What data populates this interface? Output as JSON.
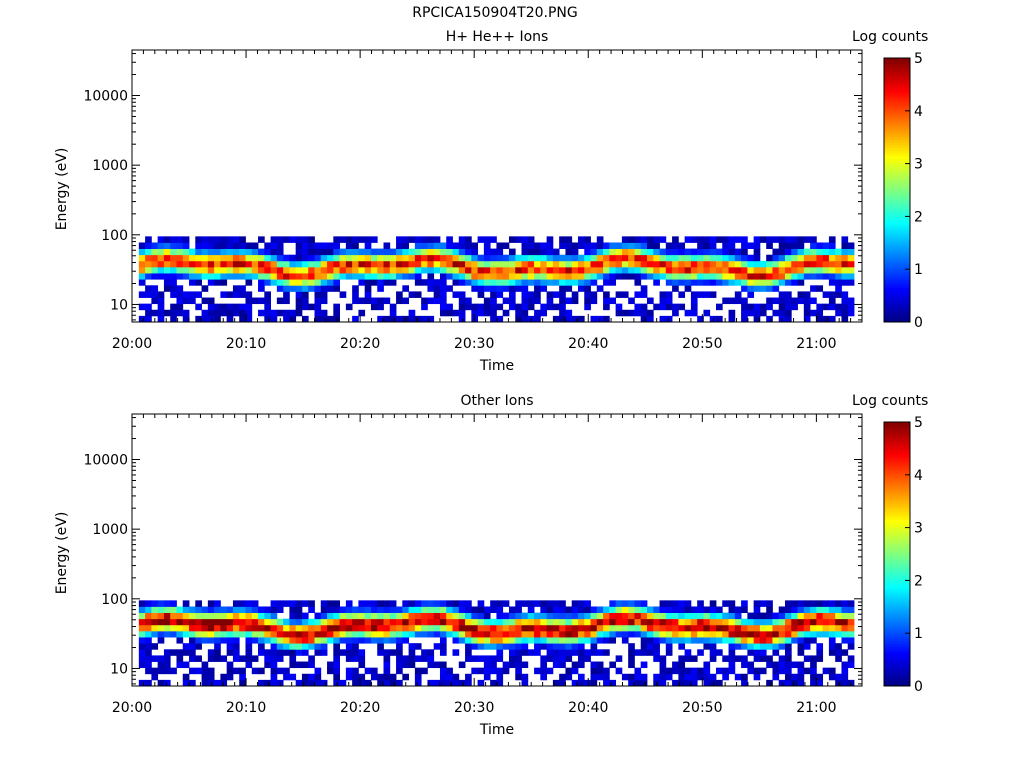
{
  "page_title": "RPCICA150904T20.PNG",
  "chart_data": [
    {
      "type": "heatmap",
      "title": "H+ He++ Ions",
      "xlabel": "Time",
      "ylabel": "Energy (eV)",
      "y_scale": "log",
      "ylim": [
        5.6,
        45000
      ],
      "y_ticks": [
        10,
        100,
        1000,
        10000
      ],
      "y_tick_labels": [
        "10",
        "100",
        "1000",
        "10000"
      ],
      "x_ticks": [
        "20:00",
        "20:10",
        "20:20",
        "20:30",
        "20:40",
        "20:50",
        "21:00"
      ],
      "x_range_minutes": [
        0,
        64
      ],
      "colorbar": {
        "label": "Log counts",
        "range": [
          0,
          5
        ],
        "ticks": [
          "0",
          "1",
          "2",
          "3",
          "4",
          "5"
        ]
      },
      "energy_band_eV": [
        5.6,
        95
      ],
      "peak_energy_eV": 35,
      "peak_log_counts": 4.3
    },
    {
      "type": "heatmap",
      "title": "Other Ions",
      "xlabel": "Time",
      "ylabel": "Energy (eV)",
      "y_scale": "log",
      "ylim": [
        5.6,
        45000
      ],
      "y_ticks": [
        10,
        100,
        1000,
        10000
      ],
      "y_tick_labels": [
        "10",
        "100",
        "1000",
        "10000"
      ],
      "x_ticks": [
        "20:00",
        "20:10",
        "20:20",
        "20:30",
        "20:40",
        "20:50",
        "21:00"
      ],
      "x_range_minutes": [
        0,
        64
      ],
      "colorbar": {
        "label": "Log counts",
        "range": [
          0,
          5
        ],
        "ticks": [
          "0",
          "1",
          "2",
          "3",
          "4",
          "5"
        ]
      },
      "energy_band_eV": [
        5.6,
        95
      ],
      "peak_energy_eV": 40,
      "peak_log_counts": 4.8
    }
  ]
}
